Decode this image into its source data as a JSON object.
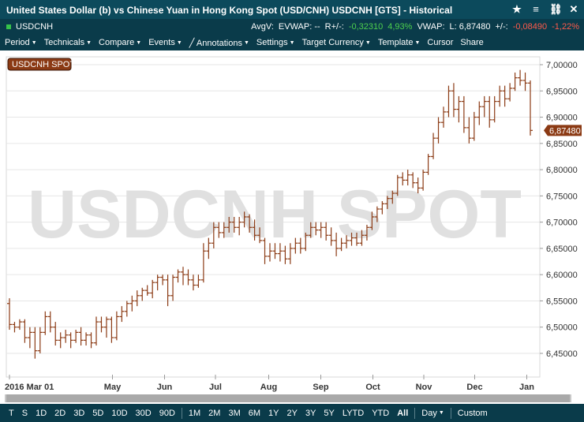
{
  "window": {
    "title": "United States Dollar (b) vs Chinese Yuan in Hong Kong Spot (USD/CNH) USDCNH [GTS] - Historical"
  },
  "quote": {
    "symbol": "USDCNH",
    "avgv_label": "AvgV:",
    "evwap_label": "EVWAP: --",
    "rpm_label": "R+/-:",
    "rpm_value": "-0,32310",
    "rpm_pct": "4,93%",
    "vwap_label": "VWAP:",
    "last_label": "L: 6,87480",
    "chg_label": "+/-:",
    "chg_value": "-0,08490",
    "chg_pct": "-1,22%",
    "colors": {
      "positive": "#4ed04e",
      "negative": "#ff5a4a"
    }
  },
  "menu": {
    "items": [
      "Period",
      "Technicals",
      "Compare",
      "Events",
      "Annotations",
      "Settings",
      "Target Currency",
      "Template",
      "Cursor",
      "Share"
    ]
  },
  "periods": {
    "items": [
      "T",
      "S",
      "1D",
      "2D",
      "3D",
      "5D",
      "10D",
      "30D",
      "90D",
      "1M",
      "2M",
      "3M",
      "6M",
      "1Y",
      "2Y",
      "3Y",
      "5Y",
      "LYTD",
      "YTD",
      "All",
      "Day",
      "Custom"
    ],
    "active": "All"
  },
  "chart_data": {
    "type": "ohlc",
    "legend": "USDCNH SPOT",
    "watermark": "USDCNH SPOT",
    "last_value_label": "6,87480",
    "y_ticks": [
      "7,00000",
      "6,95000",
      "6,90000",
      "6,85000",
      "6,80000",
      "6,75000",
      "6,70000",
      "6,65000",
      "6,60000",
      "6,55000",
      "6,50000",
      "6,45000"
    ],
    "y_tick_values": [
      7.0,
      6.95,
      6.9,
      6.85,
      6.8,
      6.75,
      6.7,
      6.65,
      6.6,
      6.55,
      6.5,
      6.45
    ],
    "ylim": [
      6.42,
      7.02
    ],
    "x_ticks": [
      {
        "label": "2016 Mar 01",
        "week": 0
      },
      {
        "label": "May",
        "week": 8.7
      },
      {
        "label": "Jun",
        "week": 13.1
      },
      {
        "label": "Jul",
        "week": 17.4
      },
      {
        "label": "Aug",
        "week": 21.9
      },
      {
        "label": "Sep",
        "week": 26.3
      },
      {
        "label": "Oct",
        "week": 30.7
      },
      {
        "label": "Nov",
        "week": 35.0
      },
      {
        "label": "Dec",
        "week": 39.3
      },
      {
        "label": "Jan",
        "week": 43.7
      }
    ],
    "color": "#8b3a14",
    "bars": [
      [
        6.545,
        6.555,
        6.495,
        6.505
      ],
      [
        6.505,
        6.51,
        6.49,
        6.5
      ],
      [
        6.5,
        6.515,
        6.495,
        6.51
      ],
      [
        6.51,
        6.515,
        6.47,
        6.48
      ],
      [
        6.48,
        6.5,
        6.46,
        6.49
      ],
      [
        6.49,
        6.5,
        6.44,
        6.455
      ],
      [
        6.455,
        6.5,
        6.45,
        6.49
      ],
      [
        6.49,
        6.53,
        6.485,
        6.52
      ],
      [
        6.52,
        6.53,
        6.49,
        6.5
      ],
      [
        6.5,
        6.51,
        6.465,
        6.475
      ],
      [
        6.475,
        6.49,
        6.46,
        6.48
      ],
      [
        6.48,
        6.495,
        6.47,
        6.485
      ],
      [
        6.485,
        6.49,
        6.46,
        6.475
      ],
      [
        6.475,
        6.495,
        6.47,
        6.49
      ],
      [
        6.49,
        6.5,
        6.465,
        6.475
      ],
      [
        6.475,
        6.49,
        6.465,
        6.485
      ],
      [
        6.485,
        6.49,
        6.46,
        6.47
      ],
      [
        6.47,
        6.52,
        6.465,
        6.51
      ],
      [
        6.51,
        6.52,
        6.49,
        6.5
      ],
      [
        6.5,
        6.52,
        6.48,
        6.515
      ],
      [
        6.515,
        6.52,
        6.47,
        6.48
      ],
      [
        6.48,
        6.53,
        6.475,
        6.52
      ],
      [
        6.52,
        6.54,
        6.51,
        6.53
      ],
      [
        6.53,
        6.55,
        6.52,
        6.545
      ],
      [
        6.545,
        6.56,
        6.53,
        6.55
      ],
      [
        6.55,
        6.57,
        6.54,
        6.56
      ],
      [
        6.56,
        6.575,
        6.55,
        6.57
      ],
      [
        6.57,
        6.58,
        6.56,
        6.565
      ],
      [
        6.565,
        6.59,
        6.555,
        6.585
      ],
      [
        6.585,
        6.6,
        6.57,
        6.595
      ],
      [
        6.595,
        6.6,
        6.58,
        6.59
      ],
      [
        6.59,
        6.6,
        6.54,
        6.56
      ],
      [
        6.56,
        6.6,
        6.55,
        6.595
      ],
      [
        6.595,
        6.61,
        6.585,
        6.605
      ],
      [
        6.605,
        6.615,
        6.58,
        6.6
      ],
      [
        6.6,
        6.61,
        6.58,
        6.59
      ],
      [
        6.59,
        6.6,
        6.57,
        6.58
      ],
      [
        6.58,
        6.6,
        6.575,
        6.59
      ],
      [
        6.59,
        6.66,
        6.585,
        6.645
      ],
      [
        6.645,
        6.67,
        6.63,
        6.66
      ],
      [
        6.66,
        6.7,
        6.65,
        6.69
      ],
      [
        6.69,
        6.7,
        6.67,
        6.68
      ],
      [
        6.68,
        6.7,
        6.67,
        6.69
      ],
      [
        6.69,
        6.71,
        6.68,
        6.7
      ],
      [
        6.7,
        6.71,
        6.68,
        6.69
      ],
      [
        6.69,
        6.71,
        6.675,
        6.7
      ],
      [
        6.7,
        6.72,
        6.69,
        6.71
      ],
      [
        6.71,
        6.715,
        6.68,
        6.69
      ],
      [
        6.69,
        6.705,
        6.665,
        6.675
      ],
      [
        6.675,
        6.69,
        6.66,
        6.665
      ],
      [
        6.665,
        6.67,
        6.62,
        6.635
      ],
      [
        6.635,
        6.66,
        6.625,
        6.645
      ],
      [
        6.645,
        6.66,
        6.63,
        6.64
      ],
      [
        6.64,
        6.66,
        6.625,
        6.645
      ],
      [
        6.645,
        6.655,
        6.62,
        6.63
      ],
      [
        6.63,
        6.66,
        6.62,
        6.65
      ],
      [
        6.65,
        6.67,
        6.64,
        6.66
      ],
      [
        6.66,
        6.67,
        6.64,
        6.65
      ],
      [
        6.65,
        6.68,
        6.645,
        6.675
      ],
      [
        6.675,
        6.7,
        6.67,
        6.69
      ],
      [
        6.69,
        6.7,
        6.675,
        6.685
      ],
      [
        6.685,
        6.7,
        6.67,
        6.69
      ],
      [
        6.69,
        6.7,
        6.665,
        6.675
      ],
      [
        6.675,
        6.69,
        6.655,
        6.665
      ],
      [
        6.665,
        6.68,
        6.635,
        6.65
      ],
      [
        6.65,
        6.67,
        6.645,
        6.66
      ],
      [
        6.66,
        6.675,
        6.65,
        6.665
      ],
      [
        6.665,
        6.68,
        6.655,
        6.67
      ],
      [
        6.67,
        6.68,
        6.655,
        6.66
      ],
      [
        6.66,
        6.685,
        6.655,
        6.675
      ],
      [
        6.675,
        6.695,
        6.665,
        6.69
      ],
      [
        6.69,
        6.72,
        6.685,
        6.71
      ],
      [
        6.71,
        6.73,
        6.7,
        6.725
      ],
      [
        6.725,
        6.74,
        6.715,
        6.735
      ],
      [
        6.735,
        6.75,
        6.725,
        6.745
      ],
      [
        6.745,
        6.76,
        6.735,
        6.755
      ],
      [
        6.755,
        6.79,
        6.75,
        6.785
      ],
      [
        6.785,
        6.795,
        6.77,
        6.78
      ],
      [
        6.78,
        6.8,
        6.77,
        6.79
      ],
      [
        6.79,
        6.795,
        6.765,
        6.775
      ],
      [
        6.775,
        6.785,
        6.755,
        6.765
      ],
      [
        6.765,
        6.8,
        6.76,
        6.795
      ],
      [
        6.795,
        6.83,
        6.79,
        6.825
      ],
      [
        6.825,
        6.87,
        6.82,
        6.86
      ],
      [
        6.86,
        6.9,
        6.85,
        6.89
      ],
      [
        6.89,
        6.92,
        6.88,
        6.91
      ],
      [
        6.91,
        6.96,
        6.9,
        6.95
      ],
      [
        6.95,
        6.965,
        6.9,
        6.915
      ],
      [
        6.915,
        6.94,
        6.89,
        6.93
      ],
      [
        6.93,
        6.94,
        6.87,
        6.88
      ],
      [
        6.88,
        6.9,
        6.85,
        6.86
      ],
      [
        6.86,
        6.91,
        6.855,
        6.9
      ],
      [
        6.9,
        6.93,
        6.885,
        6.92
      ],
      [
        6.92,
        6.94,
        6.9,
        6.93
      ],
      [
        6.93,
        6.94,
        6.88,
        6.895
      ],
      [
        6.895,
        6.94,
        6.89,
        6.93
      ],
      [
        6.93,
        6.96,
        6.92,
        6.95
      ],
      [
        6.95,
        6.96,
        6.92,
        6.935
      ],
      [
        6.935,
        6.965,
        6.93,
        6.955
      ],
      [
        6.955,
        6.985,
        6.95,
        6.975
      ],
      [
        6.975,
        6.99,
        6.96,
        6.97
      ],
      [
        6.97,
        6.985,
        6.95,
        6.965
      ],
      [
        6.965,
        6.97,
        6.865,
        6.8748
      ]
    ]
  }
}
